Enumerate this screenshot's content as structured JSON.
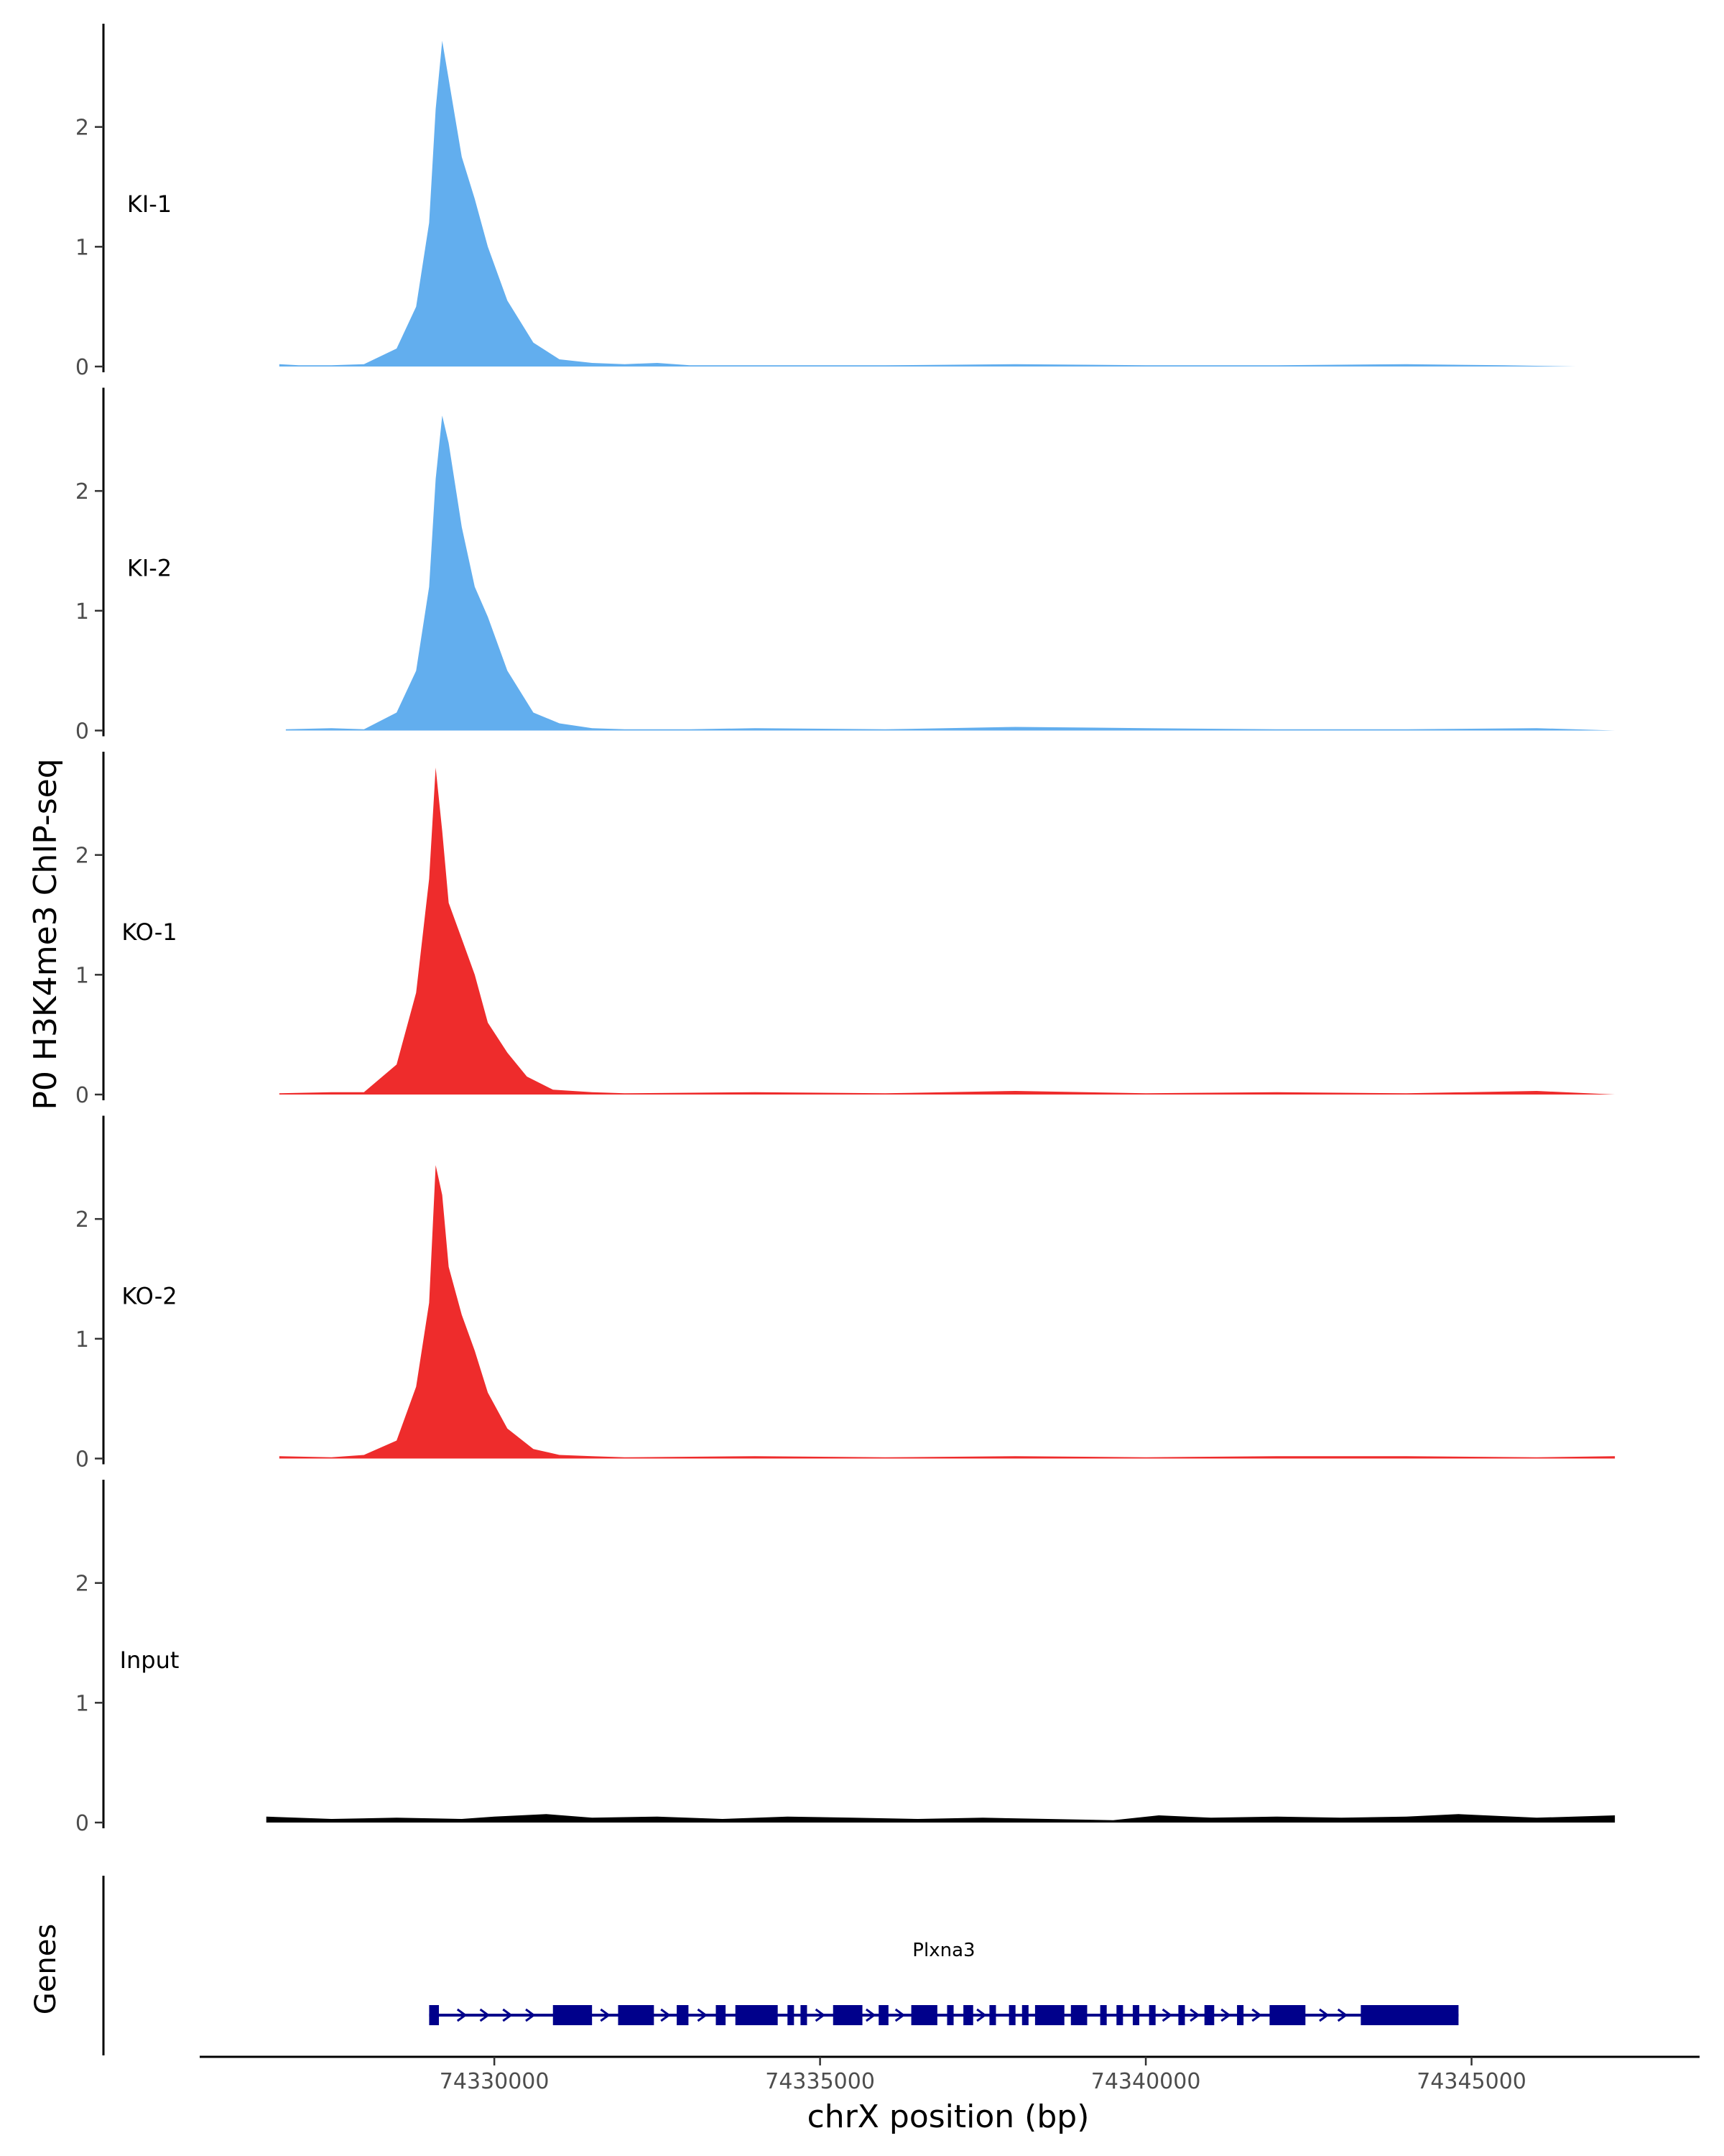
{
  "chart_data": {
    "type": "area",
    "ylabel": "P0 H3K4me3 ChIP-seq",
    "xlabel": "chrX position (bp)",
    "xlim": [
      74325500,
      74348500
    ],
    "ylim": [
      0,
      2.85
    ],
    "yticks": [
      0,
      1,
      2
    ],
    "xticks": [
      74330000,
      74335000,
      74340000,
      74345000
    ],
    "xtick_labels": [
      "74330000",
      "74335000",
      "74340000",
      "74345000"
    ],
    "colors": {
      "KI": "#62AEEE",
      "KO": "#EE2C2C",
      "Input": "#000000",
      "gene": "#00008B"
    },
    "tracks": [
      {
        "name": "KI-1",
        "color": "#62AEEE",
        "x": [
          74326700,
          74327000,
          74327500,
          74328000,
          74328500,
          74328800,
          74329000,
          74329100,
          74329200,
          74329300,
          74329500,
          74329700,
          74329900,
          74330200,
          74330600,
          74331000,
          74331500,
          74332000,
          74332500,
          74333000,
          74334000,
          74336000,
          74338000,
          74340000,
          74342000,
          74344000,
          74345500,
          74346600
        ],
        "values": [
          0.02,
          0.01,
          0.01,
          0.02,
          0.15,
          0.5,
          1.2,
          2.15,
          2.72,
          2.4,
          1.75,
          1.4,
          1.0,
          0.55,
          0.2,
          0.06,
          0.03,
          0.02,
          0.03,
          0.01,
          0.01,
          0.01,
          0.02,
          0.01,
          0.01,
          0.02,
          0.01,
          0.0
        ]
      },
      {
        "name": "KI-2",
        "color": "#62AEEE",
        "x": [
          74326800,
          74327500,
          74328000,
          74328500,
          74328800,
          74329000,
          74329100,
          74329200,
          74329300,
          74329500,
          74329700,
          74329900,
          74330200,
          74330600,
          74331000,
          74331500,
          74332000,
          74333000,
          74334000,
          74336000,
          74338000,
          74340000,
          74342000,
          74344000,
          74346000,
          74347200
        ],
        "values": [
          0.01,
          0.02,
          0.01,
          0.15,
          0.5,
          1.2,
          2.1,
          2.63,
          2.4,
          1.7,
          1.2,
          0.95,
          0.5,
          0.15,
          0.06,
          0.02,
          0.01,
          0.01,
          0.02,
          0.01,
          0.03,
          0.02,
          0.01,
          0.01,
          0.02,
          0.0
        ]
      },
      {
        "name": "KO-1",
        "color": "#EE2C2C",
        "x": [
          74326700,
          74327500,
          74328000,
          74328500,
          74328800,
          74329000,
          74329100,
          74329200,
          74329300,
          74329500,
          74329700,
          74329900,
          74330200,
          74330500,
          74330900,
          74331500,
          74332000,
          74334000,
          74336000,
          74338000,
          74340000,
          74342000,
          74344000,
          74346000,
          74347200
        ],
        "values": [
          0.01,
          0.02,
          0.02,
          0.25,
          0.85,
          1.8,
          2.73,
          2.2,
          1.6,
          1.3,
          1.0,
          0.6,
          0.35,
          0.15,
          0.04,
          0.02,
          0.01,
          0.02,
          0.01,
          0.03,
          0.01,
          0.02,
          0.01,
          0.03,
          0.0
        ]
      },
      {
        "name": "KO-2",
        "color": "#EE2C2C",
        "x": [
          74326700,
          74327500,
          74328000,
          74328500,
          74328800,
          74329000,
          74329100,
          74329200,
          74329300,
          74329500,
          74329700,
          74329900,
          74330200,
          74330600,
          74331000,
          74331500,
          74332000,
          74334000,
          74336000,
          74338000,
          74340000,
          74342000,
          74344000,
          74346000,
          74347200
        ],
        "values": [
          0.02,
          0.01,
          0.03,
          0.15,
          0.6,
          1.3,
          2.45,
          2.2,
          1.6,
          1.2,
          0.9,
          0.55,
          0.25,
          0.08,
          0.03,
          0.02,
          0.01,
          0.02,
          0.01,
          0.02,
          0.01,
          0.02,
          0.02,
          0.01,
          0.02
        ]
      },
      {
        "name": "Input",
        "color": "#000000",
        "x": [
          74326500,
          74327500,
          74328500,
          74329500,
          74330000,
          74330800,
          74331500,
          74332500,
          74333500,
          74334500,
          74335500,
          74336500,
          74337500,
          74338500,
          74339500,
          74340200,
          74341000,
          74342000,
          74343000,
          74344000,
          74344800,
          74346000,
          74347200
        ],
        "values": [
          0.05,
          0.03,
          0.04,
          0.03,
          0.05,
          0.07,
          0.04,
          0.05,
          0.03,
          0.05,
          0.04,
          0.03,
          0.04,
          0.03,
          0.02,
          0.06,
          0.04,
          0.05,
          0.04,
          0.05,
          0.07,
          0.04,
          0.06
        ]
      }
    ],
    "genes_label": "Genes",
    "gene": {
      "name": "Plxna3",
      "start": 74329000,
      "end": 74344800,
      "exons": [
        [
          74329000,
          74329150
        ],
        [
          74330900,
          74331500
        ],
        [
          74331900,
          74332450
        ],
        [
          74332800,
          74332980
        ],
        [
          74333400,
          74333550
        ],
        [
          74333700,
          74334350
        ],
        [
          74334500,
          74334600
        ],
        [
          74334700,
          74334800
        ],
        [
          74335200,
          74335650
        ],
        [
          74335900,
          74336050
        ],
        [
          74336400,
          74336800
        ],
        [
          74336950,
          74337050
        ],
        [
          74337200,
          74337350
        ],
        [
          74337600,
          74337700
        ],
        [
          74337900,
          74338000
        ],
        [
          74338100,
          74338200
        ],
        [
          74338300,
          74338750
        ],
        [
          74338850,
          74339100
        ],
        [
          74339300,
          74339400
        ],
        [
          74339550,
          74339650
        ],
        [
          74339800,
          74339900
        ],
        [
          74340050,
          74340150
        ],
        [
          74340500,
          74340600
        ],
        [
          74340900,
          74341050
        ],
        [
          74341400,
          74341500
        ],
        [
          74341900,
          74342450
        ],
        [
          74343300,
          74344800
        ]
      ]
    }
  }
}
